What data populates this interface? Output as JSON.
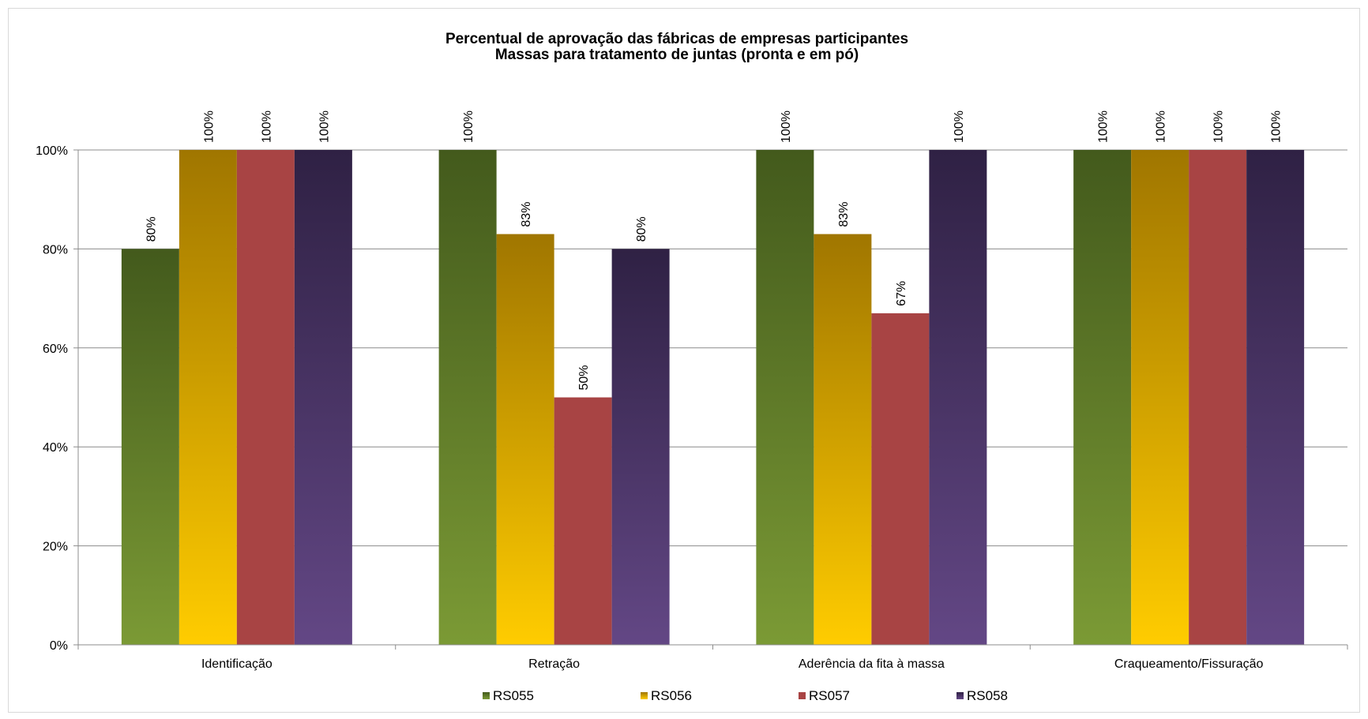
{
  "chart_data": {
    "type": "bar",
    "title": "Percentual de aprovação das fábricas de empresas participantes",
    "subtitle": "Massas para tratamento de juntas (pronta e em pó)",
    "categories": [
      "Identificação",
      "Retração",
      "Aderência da fita à massa",
      "Craqueamento/Fissuração"
    ],
    "series": [
      {
        "name": "RS055",
        "values": [
          80,
          100,
          100,
          100
        ],
        "labels": [
          "80%",
          "100%",
          "100%",
          "100%"
        ],
        "color_top": "#435a1c",
        "color_bottom": "#7b9a35"
      },
      {
        "name": "RS056",
        "values": [
          100,
          83,
          83,
          100
        ],
        "labels": [
          "100%",
          "83%",
          "83%",
          "100%"
        ],
        "color_top": "#a07600",
        "color_bottom": "#ffcc00"
      },
      {
        "name": "RS057",
        "values": [
          100,
          50,
          67,
          100
        ],
        "labels": [
          "100%",
          "50%",
          "67%",
          "100%"
        ],
        "color_top": "#a84444",
        "color_bottom": "#a84444"
      },
      {
        "name": "RS058",
        "values": [
          100,
          80,
          100,
          100
        ],
        "labels": [
          "100%",
          "80%",
          "100%",
          "100%"
        ],
        "color_top": "#2f2144",
        "color_bottom": "#634785"
      }
    ],
    "yticks": [
      "0%",
      "20%",
      "40%",
      "60%",
      "80%",
      "100%"
    ],
    "ylim": [
      0,
      100
    ],
    "grid": true,
    "legend_position": "bottom"
  }
}
